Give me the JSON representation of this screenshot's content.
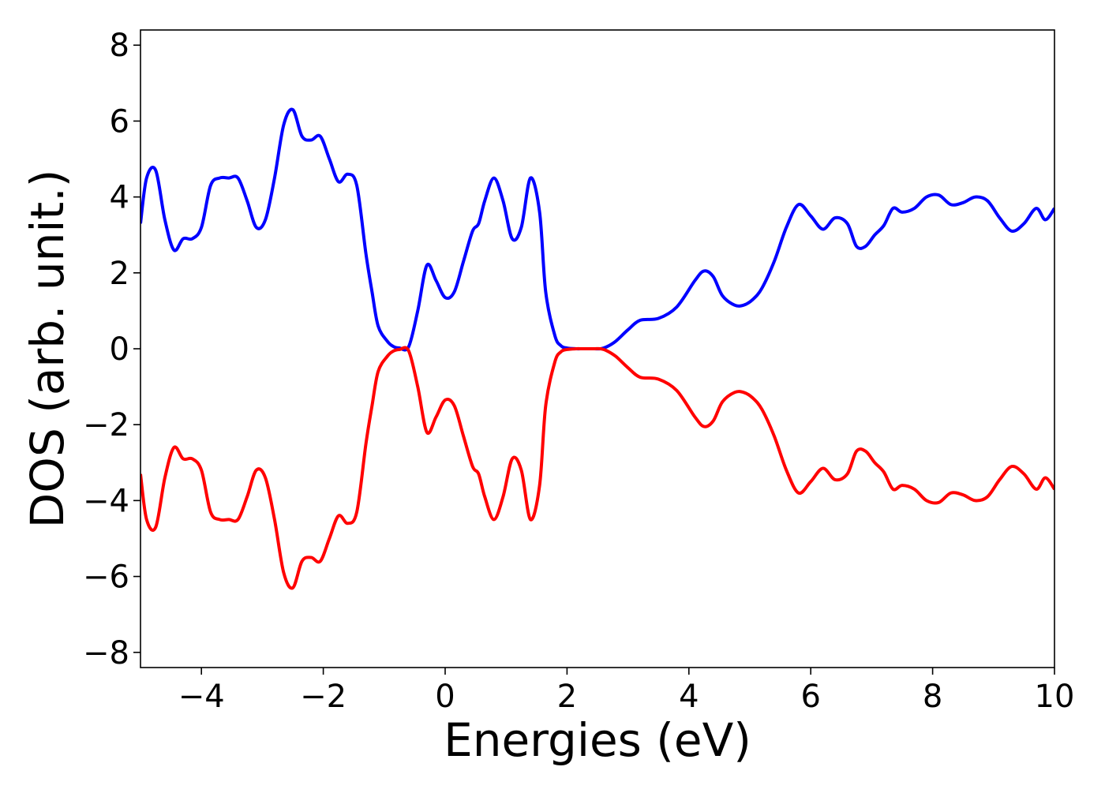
{
  "chart_data": {
    "type": "line",
    "title": "",
    "xlabel": "Energies (eV)",
    "ylabel": "DOS (arb. unit.)",
    "xlim": [
      -5,
      10
    ],
    "ylim": [
      -8.4,
      8.4
    ],
    "xticks": [
      -4,
      -2,
      0,
      2,
      4,
      6,
      8,
      10
    ],
    "xtick_labels": [
      "−4",
      "−2",
      "0",
      "2",
      "4",
      "6",
      "8",
      "10"
    ],
    "yticks": [
      -8,
      -6,
      -4,
      -2,
      0,
      2,
      4,
      6,
      8
    ],
    "ytick_labels": [
      "−8",
      "−6",
      "−4",
      "−2",
      "0",
      "2",
      "4",
      "6",
      "8"
    ],
    "grid": false,
    "legend": "none",
    "series": [
      {
        "color": "#0000ff",
        "x": [
          -5.0,
          -4.9,
          -4.75,
          -4.6,
          -4.45,
          -4.3,
          -4.15,
          -4.0,
          -3.85,
          -3.7,
          -3.55,
          -3.4,
          -3.25,
          -3.1,
          -2.95,
          -2.8,
          -2.65,
          -2.5,
          -2.35,
          -2.2,
          -2.05,
          -1.9,
          -1.75,
          -1.6,
          -1.45,
          -1.3,
          -1.2,
          -1.1,
          -0.95,
          -0.85,
          -0.75,
          -0.6,
          -0.45,
          -0.3,
          -0.15,
          0.0,
          0.15,
          0.3,
          0.45,
          0.55,
          0.65,
          0.8,
          0.95,
          1.1,
          1.25,
          1.4,
          1.55,
          1.65,
          1.8,
          1.9,
          2.0,
          2.15,
          2.25,
          2.35,
          2.45,
          2.55,
          2.65,
          2.8,
          3.0,
          3.2,
          3.5,
          3.8,
          4.1,
          4.25,
          4.4,
          4.55,
          4.75,
          4.9,
          5.05,
          5.2,
          5.4,
          5.6,
          5.8,
          6.0,
          6.2,
          6.4,
          6.6,
          6.75,
          6.9,
          7.05,
          7.2,
          7.35,
          7.5,
          7.7,
          7.9,
          8.1,
          8.3,
          8.5,
          8.7,
          8.9,
          9.1,
          9.3,
          9.5,
          9.7,
          9.85,
          10.0
        ],
        "y": [
          3.3,
          4.5,
          4.7,
          3.4,
          2.6,
          2.9,
          2.9,
          3.2,
          4.3,
          4.5,
          4.5,
          4.5,
          3.9,
          3.2,
          3.4,
          4.5,
          5.9,
          6.3,
          5.6,
          5.5,
          5.6,
          5.0,
          4.4,
          4.6,
          4.3,
          2.5,
          1.5,
          0.6,
          0.2,
          0.06,
          0.02,
          0.05,
          1.0,
          2.2,
          1.8,
          1.35,
          1.5,
          2.3,
          3.1,
          3.3,
          3.9,
          4.5,
          3.9,
          2.9,
          3.2,
          4.5,
          3.6,
          1.5,
          0.35,
          0.08,
          0.02,
          0.0,
          0.0,
          0.0,
          0.0,
          0.0,
          0.05,
          0.2,
          0.5,
          0.75,
          0.8,
          1.1,
          1.8,
          2.05,
          1.9,
          1.4,
          1.15,
          1.15,
          1.3,
          1.6,
          2.3,
          3.2,
          3.8,
          3.5,
          3.15,
          3.45,
          3.3,
          2.7,
          2.7,
          3.0,
          3.25,
          3.7,
          3.6,
          3.7,
          4.0,
          4.05,
          3.8,
          3.85,
          4.0,
          3.9,
          3.45,
          3.1,
          3.3,
          3.7,
          3.4,
          3.7
        ]
      },
      {
        "color": "#ff0000",
        "x": [
          -5.0,
          -4.9,
          -4.75,
          -4.6,
          -4.45,
          -4.3,
          -4.15,
          -4.0,
          -3.85,
          -3.7,
          -3.55,
          -3.4,
          -3.25,
          -3.1,
          -2.95,
          -2.8,
          -2.65,
          -2.5,
          -2.35,
          -2.2,
          -2.05,
          -1.9,
          -1.75,
          -1.6,
          -1.45,
          -1.3,
          -1.2,
          -1.1,
          -0.95,
          -0.85,
          -0.75,
          -0.6,
          -0.45,
          -0.3,
          -0.15,
          0.0,
          0.15,
          0.3,
          0.45,
          0.55,
          0.65,
          0.8,
          0.95,
          1.1,
          1.25,
          1.4,
          1.55,
          1.65,
          1.8,
          1.9,
          2.0,
          2.15,
          2.25,
          2.35,
          2.45,
          2.55,
          2.65,
          2.8,
          3.0,
          3.2,
          3.5,
          3.8,
          4.1,
          4.25,
          4.4,
          4.55,
          4.75,
          4.9,
          5.05,
          5.2,
          5.4,
          5.6,
          5.8,
          6.0,
          6.2,
          6.4,
          6.6,
          6.75,
          6.9,
          7.05,
          7.2,
          7.35,
          7.5,
          7.7,
          7.9,
          8.1,
          8.3,
          8.5,
          8.7,
          8.9,
          9.1,
          9.3,
          9.5,
          9.7,
          9.85,
          10.0
        ],
        "y": [
          -3.3,
          -4.5,
          -4.7,
          -3.4,
          -2.6,
          -2.9,
          -2.9,
          -3.2,
          -4.3,
          -4.5,
          -4.5,
          -4.5,
          -3.9,
          -3.2,
          -3.4,
          -4.5,
          -5.9,
          -6.3,
          -5.6,
          -5.5,
          -5.6,
          -5.0,
          -4.4,
          -4.6,
          -4.3,
          -2.5,
          -1.5,
          -0.6,
          -0.2,
          -0.06,
          -0.02,
          -0.05,
          -1.0,
          -2.2,
          -1.8,
          -1.35,
          -1.5,
          -2.3,
          -3.1,
          -3.3,
          -3.9,
          -4.5,
          -3.9,
          -2.9,
          -3.2,
          -4.5,
          -3.6,
          -1.5,
          -0.35,
          -0.08,
          -0.02,
          0.0,
          0.0,
          0.0,
          0.0,
          0.0,
          -0.05,
          -0.2,
          -0.5,
          -0.75,
          -0.8,
          -1.1,
          -1.8,
          -2.05,
          -1.9,
          -1.4,
          -1.15,
          -1.15,
          -1.3,
          -1.6,
          -2.3,
          -3.2,
          -3.8,
          -3.5,
          -3.15,
          -3.45,
          -3.3,
          -2.7,
          -2.7,
          -3.0,
          -3.25,
          -3.7,
          -3.6,
          -3.7,
          -4.0,
          -4.05,
          -3.8,
          -3.85,
          -4.0,
          -3.9,
          -3.45,
          -3.1,
          -3.3,
          -3.7,
          -3.4,
          -3.7
        ]
      }
    ]
  }
}
